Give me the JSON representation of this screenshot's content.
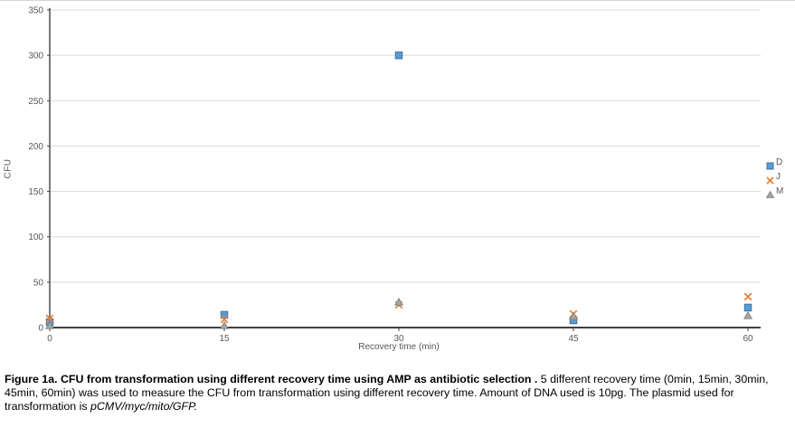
{
  "chart_data": {
    "type": "scatter",
    "title": "",
    "xlabel": "Recovery time (min)",
    "ylabel": "CFU",
    "x": [
      0,
      15,
      30,
      45,
      60
    ],
    "xlim": [
      0,
      60
    ],
    "ylim": [
      0,
      350
    ],
    "xticks": [
      0,
      15,
      30,
      45,
      60
    ],
    "yticks": [
      0,
      50,
      100,
      150,
      200,
      250,
      300,
      350
    ],
    "grid": "horizontal-only",
    "legend_position": "right-middle",
    "series": [
      {
        "name": "D",
        "marker": "square",
        "color": "#5B9BD5",
        "edge": "#41719C",
        "values": [
          6,
          14,
          300,
          8,
          22
        ]
      },
      {
        "name": "J",
        "marker": "x",
        "color": "#ED7D31",
        "edge": "#ED7D31",
        "values": [
          10,
          9,
          25,
          15,
          34
        ]
      },
      {
        "name": "M",
        "marker": "triangle",
        "color": "#A5A5A5",
        "edge": "#7F7F7F",
        "values": [
          2,
          2,
          28,
          12,
          13
        ]
      }
    ]
  },
  "colors": {
    "gridline": "#D9D9D9",
    "axis_line": "#404040",
    "tick_text": "#595959",
    "chart_border": "#D6D6D6"
  },
  "caption": {
    "bold": "Figure 1a. CFU from transformation using different recovery time using AMP as antibiotic selection .",
    "normal": " 5 different recovery time (0min, 15min, 30min, 45min, 60min) was used to measure the CFU from transformation using different recovery time. Amount of DNA used is 10pg. The plasmid used for transformation is ",
    "italic": "pCMV/myc/mito/GFP."
  }
}
